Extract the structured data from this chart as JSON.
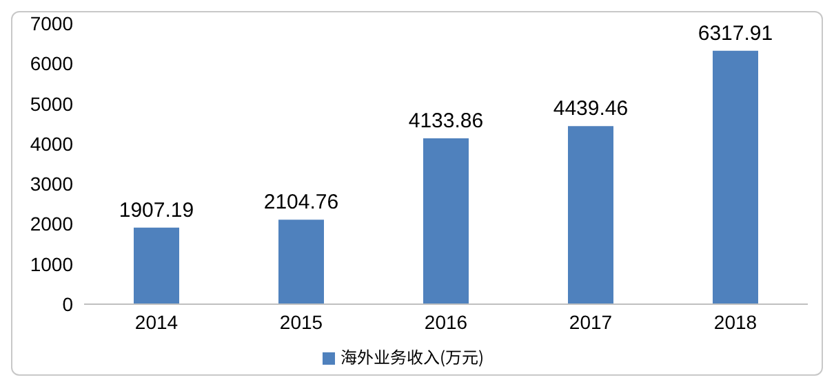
{
  "chart_data": {
    "type": "bar",
    "categories": [
      "2014",
      "2015",
      "2016",
      "2017",
      "2018"
    ],
    "series": [
      {
        "name": "海外业务收入(万元)",
        "color": "#4f81bd",
        "values": [
          1907.19,
          2104.76,
          4133.86,
          4439.46,
          6317.91
        ]
      }
    ],
    "ylim": [
      0,
      7000
    ],
    "yticks": [
      0,
      1000,
      2000,
      3000,
      4000,
      5000,
      6000,
      7000
    ],
    "grid": false,
    "legend": "bottom",
    "data_labels": true
  }
}
